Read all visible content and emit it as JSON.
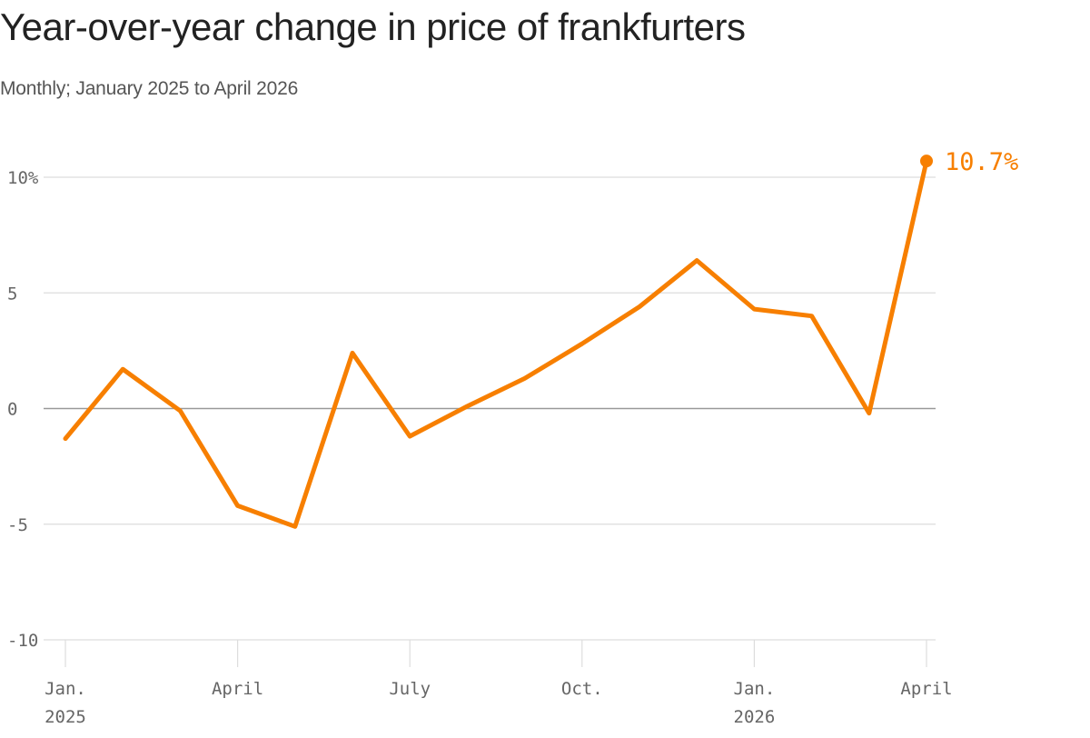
{
  "chart_data": {
    "type": "line",
    "title": "Year-over-year change in price of frankfurters",
    "subtitle": "Monthly; January 2025 to April 2026",
    "x": [
      "2025-01",
      "2025-02",
      "2025-03",
      "2025-04",
      "2025-05",
      "2025-06",
      "2025-07",
      "2025-08",
      "2025-09",
      "2025-10",
      "2025-11",
      "2025-12",
      "2026-01",
      "2026-02",
      "2026-03",
      "2026-04"
    ],
    "series": [
      {
        "values": [
          -1.3,
          1.7,
          -0.1,
          -4.2,
          -5.1,
          2.4,
          -1.2,
          0.1,
          1.3,
          2.8,
          4.4,
          6.4,
          4.3,
          4.0,
          -0.2,
          10.7
        ],
        "color": "#f77f00"
      }
    ],
    "ylim": [
      -10,
      10
    ],
    "y_ticks": [
      {
        "value": 10,
        "label": "10%"
      },
      {
        "value": 5,
        "label": "5"
      },
      {
        "value": 0,
        "label": "0"
      },
      {
        "value": -5,
        "label": "-5"
      },
      {
        "value": -10,
        "label": "-10"
      }
    ],
    "x_ticks": [
      {
        "index": 0,
        "label": "Jan.",
        "sublabel": "2025"
      },
      {
        "index": 3,
        "label": "April",
        "sublabel": ""
      },
      {
        "index": 6,
        "label": "July",
        "sublabel": ""
      },
      {
        "index": 9,
        "label": "Oct.",
        "sublabel": ""
      },
      {
        "index": 12,
        "label": "Jan.",
        "sublabel": "2026"
      },
      {
        "index": 15,
        "label": "April",
        "sublabel": ""
      }
    ],
    "end_label": "10.7%",
    "grid": true,
    "zero_line_color": "#999999",
    "grid_color": "#dddddd"
  }
}
